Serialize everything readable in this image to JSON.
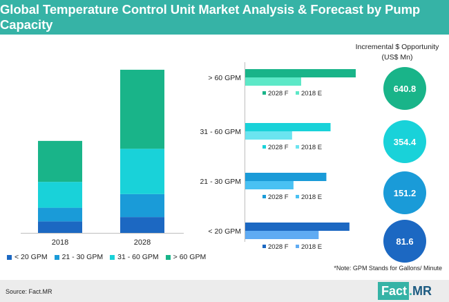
{
  "title": "Global Temperature Control Unit Market Analysis & Forecast by Pump Capacity",
  "colors": {
    "brand": "#36b3a6",
    "lt20": "#1c68c2",
    "g21_30": "#1a9bd8",
    "g31_60": "#19d2d9",
    "gt60": "#19b489",
    "lt20_2018": "#5fabf3",
    "g21_30_2018": "#49c1f3",
    "g31_60_2018": "#6be4f0",
    "gt60_2018": "#5de8c7"
  },
  "chart_data": [
    {
      "type": "stacked-bar",
      "categories": [
        "2018",
        "2028"
      ],
      "series": [
        {
          "name": "< 20 GPM",
          "values": [
            16,
            22
          ],
          "color_key": "lt20"
        },
        {
          "name": "21 - 30 GPM",
          "values": [
            19,
            32
          ],
          "color_key": "g21_30"
        },
        {
          "name": "31 - 60 GPM",
          "values": [
            36,
            63
          ],
          "color_key": "g31_60"
        },
        {
          "name": "> 60 GPM",
          "values": [
            57,
            110
          ],
          "color_key": "gt60"
        }
      ],
      "ylim": [
        0,
        250
      ],
      "axis": false
    },
    {
      "type": "bar-horizontal",
      "groups": [
        {
          "label": "> 60 GPM",
          "f2028": 158,
          "e2018": 80,
          "f_color_key": "gt60",
          "e_color_key": "gt60_2018"
        },
        {
          "label": "31 - 60 GPM",
          "f2028": 122,
          "e2018": 67,
          "f_color_key": "g31_60",
          "e_color_key": "g31_60_2018"
        },
        {
          "label": "21 - 30 GPM",
          "f2028": 116,
          "e2018": 69,
          "f_color_key": "g21_30",
          "e_color_key": "g21_30_2018"
        },
        {
          "label": "< 20 GPM",
          "f2028": 149,
          "e2018": 105,
          "f_color_key": "lt20",
          "e_color_key": "lt20_2018"
        }
      ],
      "legend_f": "2028 F",
      "legend_e": "2018 E",
      "xlim": [
        0,
        200
      ]
    }
  ],
  "legend": [
    {
      "label": "< 20 GPM",
      "color_key": "lt20"
    },
    {
      "label": "21 - 30 GPM",
      "color_key": "g21_30"
    },
    {
      "label": "31 - 60 GPM",
      "color_key": "g31_60"
    },
    {
      "label": "> 60 GPM",
      "color_key": "gt60"
    }
  ],
  "opportunity": {
    "header_line1": "Incremental $ Opportunity",
    "header_line2": "(US$ Mn)",
    "values": [
      {
        "value": "640.8",
        "color_key": "gt60"
      },
      {
        "value": "354.4",
        "color_key": "g31_60"
      },
      {
        "value": "151.2",
        "color_key": "g21_30"
      },
      {
        "value": "81.6",
        "color_key": "lt20"
      }
    ]
  },
  "note": "*Note: GPM Stands for Gallons/ Minute",
  "source": "Source: Fact.MR",
  "logo": {
    "fact": "Fact",
    "dot": ".",
    "mr": "MR"
  }
}
